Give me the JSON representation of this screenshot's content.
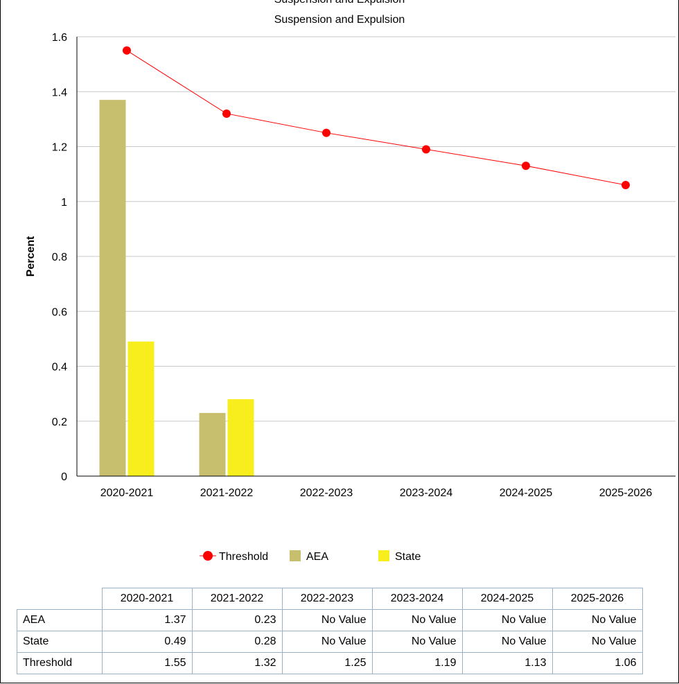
{
  "chart_data": {
    "type": "bar",
    "top_title": "Suspension and Expulsion",
    "title": "Suspension and Expulsion",
    "ylabel": "Percent",
    "xlabel": "",
    "ylim": [
      0,
      1.6
    ],
    "yticks": [
      0,
      0.2,
      0.4,
      0.6,
      0.8,
      1,
      1.2,
      1.4,
      1.6
    ],
    "ytick_labels": [
      "0",
      "0.2",
      "0.4",
      "0.6",
      "0.8",
      "1",
      "1.2",
      "1.4",
      "1.6"
    ],
    "categories": [
      "2020-2021",
      "2021-2022",
      "2022-2023",
      "2023-2024",
      "2024-2025",
      "2025-2026"
    ],
    "grid": true,
    "legend_position": "bottom",
    "series": [
      {
        "name": "AEA",
        "kind": "bar",
        "color": "#c8bf6e",
        "values": [
          1.37,
          0.23,
          null,
          null,
          null,
          null
        ]
      },
      {
        "name": "State",
        "kind": "bar",
        "color": "#f8ee1e",
        "values": [
          0.49,
          0.28,
          null,
          null,
          null,
          null
        ]
      },
      {
        "name": "Threshold",
        "kind": "line",
        "color": "#ff0000",
        "values": [
          1.55,
          1.32,
          1.25,
          1.19,
          1.13,
          1.06
        ]
      }
    ],
    "legend_order": [
      "Threshold",
      "AEA",
      "State"
    ]
  },
  "table": {
    "columns": [
      "2020-2021",
      "2021-2022",
      "2022-2023",
      "2023-2024",
      "2024-2025",
      "2025-2026"
    ],
    "rows": [
      {
        "label": "AEA",
        "cells": [
          "1.37",
          "0.23",
          "No Value",
          "No Value",
          "No Value",
          "No Value"
        ]
      },
      {
        "label": "State",
        "cells": [
          "0.49",
          "0.28",
          "No Value",
          "No Value",
          "No Value",
          "No Value"
        ]
      },
      {
        "label": "Threshold",
        "cells": [
          "1.55",
          "1.32",
          "1.25",
          "1.19",
          "1.13",
          "1.06"
        ]
      }
    ]
  }
}
